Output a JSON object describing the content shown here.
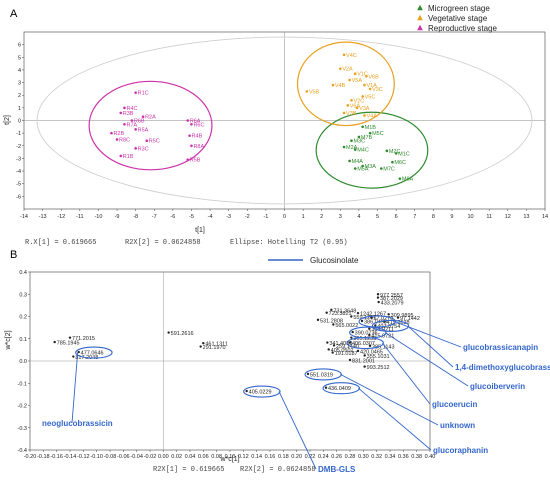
{
  "chart_data": [
    {
      "type": "scatter",
      "panel": "A",
      "xlabel": "t[1]",
      "ylabel": "t[2]",
      "xlim": [
        -14,
        14
      ],
      "ylim": [
        -7,
        7
      ],
      "x_ticks": [
        -14,
        -13,
        -12,
        -11,
        -10,
        -9,
        -8,
        -7,
        -6,
        -5,
        -4,
        -3,
        -2,
        -1,
        0,
        1,
        2,
        3,
        4,
        5,
        6,
        7,
        8,
        9,
        10,
        11,
        12,
        13,
        14
      ],
      "y_ticks": [
        -6,
        -5,
        -4,
        -3,
        -2,
        -1,
        0,
        1,
        2,
        3,
        4,
        5,
        6
      ],
      "legend_position": "top-right",
      "legend": [
        "Microgreen stage",
        "Vegetative stage",
        "Reproductive stage"
      ],
      "footer": [
        "R.X[1] = 0.619665",
        "R2X[2] = 0.0624858",
        "Ellipse: Hotelling T2 (0.95)"
      ],
      "colors": {
        "microgreen": "#2e8b2e",
        "vegetative": "#e8a020",
        "reproductive": "#cc33aa"
      },
      "series": [
        {
          "name": "Microgreen stage",
          "points": [
            {
              "x": 4.2,
              "y": -0.5,
              "label": "M1B"
            },
            {
              "x": 4.6,
              "y": -1.0,
              "label": "M5C"
            },
            {
              "x": 4.0,
              "y": -1.3,
              "label": "M7B"
            },
            {
              "x": 3.6,
              "y": -1.6,
              "label": "M3C"
            },
            {
              "x": 3.2,
              "y": -2.1,
              "label": "M2A"
            },
            {
              "x": 3.8,
              "y": -2.3,
              "label": "M4C"
            },
            {
              "x": 5.5,
              "y": -2.4,
              "label": "M2C"
            },
            {
              "x": 6.0,
              "y": -2.6,
              "label": "M1C"
            },
            {
              "x": 3.5,
              "y": -3.2,
              "label": "M4A"
            },
            {
              "x": 5.8,
              "y": -3.3,
              "label": "M6C"
            },
            {
              "x": 4.2,
              "y": -3.6,
              "label": "M3A"
            },
            {
              "x": 3.8,
              "y": -3.8,
              "label": "M5A"
            },
            {
              "x": 5.2,
              "y": -3.8,
              "label": "M7C"
            },
            {
              "x": 6.2,
              "y": -4.6,
              "label": "M6A"
            }
          ]
        },
        {
          "name": "Vegetative stage",
          "points": [
            {
              "x": 3.2,
              "y": 5.2,
              "label": "V4C"
            },
            {
              "x": 3.0,
              "y": 4.1,
              "label": "V2A"
            },
            {
              "x": 3.8,
              "y": 3.7,
              "label": "V1C"
            },
            {
              "x": 4.4,
              "y": 3.5,
              "label": "V6B"
            },
            {
              "x": 3.5,
              "y": 3.2,
              "label": "V5A"
            },
            {
              "x": 2.6,
              "y": 2.8,
              "label": "V4B"
            },
            {
              "x": 4.3,
              "y": 2.8,
              "label": "V1A"
            },
            {
              "x": 4.6,
              "y": 2.5,
              "label": "V3C"
            },
            {
              "x": 1.2,
              "y": 2.3,
              "label": "V5B"
            },
            {
              "x": 4.2,
              "y": 1.9,
              "label": "V5C"
            },
            {
              "x": 3.6,
              "y": 1.6,
              "label": "V2C"
            },
            {
              "x": 3.4,
              "y": 1.2,
              "label": "V6A"
            },
            {
              "x": 3.9,
              "y": 1.0,
              "label": "V3A"
            },
            {
              "x": 3.2,
              "y": 0.6,
              "label": "V3B"
            },
            {
              "x": 4.3,
              "y": 0.4,
              "label": "V4A"
            }
          ]
        },
        {
          "name": "Reproductive stage",
          "points": [
            {
              "x": -8.0,
              "y": 2.2,
              "label": "R1C"
            },
            {
              "x": -8.6,
              "y": 1.0,
              "label": "R4C"
            },
            {
              "x": -8.8,
              "y": 0.6,
              "label": "R3B"
            },
            {
              "x": -7.6,
              "y": 0.3,
              "label": "R2A"
            },
            {
              "x": -8.2,
              "y": 0.0,
              "label": "R6B"
            },
            {
              "x": -5.2,
              "y": 0.0,
              "label": "R6A"
            },
            {
              "x": -8.6,
              "y": -0.3,
              "label": "R7A"
            },
            {
              "x": -5.0,
              "y": -0.3,
              "label": "R6C"
            },
            {
              "x": -8.0,
              "y": -0.7,
              "label": "R5A"
            },
            {
              "x": -9.3,
              "y": -1.0,
              "label": "R2B"
            },
            {
              "x": -5.1,
              "y": -1.2,
              "label": "R4B"
            },
            {
              "x": -9.0,
              "y": -1.5,
              "label": "R8C"
            },
            {
              "x": -7.4,
              "y": -1.6,
              "label": "R5C"
            },
            {
              "x": -5.0,
              "y": -2.0,
              "label": "R8A"
            },
            {
              "x": -8.0,
              "y": -2.2,
              "label": "R3C"
            },
            {
              "x": -8.8,
              "y": -2.8,
              "label": "R1B"
            },
            {
              "x": -5.2,
              "y": -3.1,
              "label": "R5B"
            }
          ]
        }
      ]
    },
    {
      "type": "scatter",
      "panel": "B",
      "xlabel": "w*c[1]",
      "ylabel": "w*c[2]",
      "xlim": [
        -0.2,
        0.4
      ],
      "ylim": [
        -0.4,
        0.4
      ],
      "x_ticks": [
        "-0.20",
        "-0.18",
        "-0.16",
        "-0.14",
        "-0.12",
        "-0.10",
        "-0.08",
        "-0.06",
        "-0.04",
        "-0.02",
        "0.00",
        "0.02",
        "0.04",
        "0.06",
        "0.08",
        "0.10",
        "0.12",
        "0.14",
        "0.16",
        "0.18",
        "0.20",
        "0.22",
        "0.24",
        "0.26",
        "0.28",
        "0.30",
        "0.32",
        "0.34",
        "0.36",
        "0.38",
        "0.40"
      ],
      "y_ticks": [
        "0.4",
        "0.3",
        "0.2",
        "0.1",
        "0.0",
        "-0.1",
        "-0.2",
        "-0.3",
        "-0.4"
      ],
      "legend_position": "top-right",
      "legend": [
        "Glucosinolate"
      ],
      "footer": [
        "R2X[1] = 0.619665",
        "R2X[2] = 0.0624858"
      ],
      "points": [
        {
          "x": 0.322,
          "y": 0.3,
          "label": "977.2557"
        },
        {
          "x": 0.322,
          "y": 0.285,
          "label": "387.2029"
        },
        {
          "x": 0.323,
          "y": 0.265,
          "label": "433.2079"
        },
        {
          "x": 0.252,
          "y": 0.23,
          "label": "731.3648"
        },
        {
          "x": 0.245,
          "y": 0.217,
          "label": "723.3821"
        },
        {
          "x": 0.292,
          "y": 0.215,
          "label": "1242.1267"
        },
        {
          "x": 0.338,
          "y": 0.21,
          "label": "309.9895"
        },
        {
          "x": 0.282,
          "y": 0.2,
          "label": "559.1267"
        },
        {
          "x": 0.312,
          "y": 0.195,
          "label": "57.0270"
        },
        {
          "x": 0.352,
          "y": 0.195,
          "label": "97.1442"
        },
        {
          "x": 0.232,
          "y": 0.185,
          "label": "531.2808"
        },
        {
          "x": 0.298,
          "y": 0.18,
          "label": "386.0490"
        },
        {
          "x": 0.332,
          "y": 0.177,
          "label": "415.2628"
        },
        {
          "x": 0.255,
          "y": 0.164,
          "label": "565.0022"
        },
        {
          "x": 0.318,
          "y": 0.16,
          "label": "407.0754"
        },
        {
          "x": 0.008,
          "y": 0.128,
          "label": "591.2616"
        },
        {
          "x": 0.309,
          "y": 0.145,
          "label": "304.0211"
        },
        {
          "x": 0.284,
          "y": 0.13,
          "label": "390.0736"
        },
        {
          "x": 0.309,
          "y": 0.117,
          "label": "415.0721"
        },
        {
          "x": 0.282,
          "y": 0.105,
          "label": "365.1235"
        },
        {
          "x": 0.246,
          "y": 0.083,
          "label": "341.4088"
        },
        {
          "x": 0.28,
          "y": 0.083,
          "label": "406.0307"
        },
        {
          "x": 0.256,
          "y": 0.07,
          "label": "259.1440"
        },
        {
          "x": 0.31,
          "y": 0.068,
          "label": "385.1143"
        },
        {
          "x": 0.248,
          "y": 0.052,
          "label": "405.0502"
        },
        {
          "x": 0.292,
          "y": 0.045,
          "label": "420.0465"
        },
        {
          "x": 0.254,
          "y": 0.038,
          "label": "191.0187"
        },
        {
          "x": 0.302,
          "y": 0.025,
          "label": "355.1031"
        },
        {
          "x": 0.28,
          "y": 0.005,
          "label": "831.2001"
        },
        {
          "x": 0.302,
          "y": -0.025,
          "label": "993.2512"
        },
        {
          "x": 0.06,
          "y": 0.08,
          "label": "461.1311"
        },
        {
          "x": 0.056,
          "y": 0.065,
          "label": "291.1970"
        },
        {
          "x": -0.14,
          "y": 0.105,
          "label": "771.2015"
        },
        {
          "x": -0.163,
          "y": 0.085,
          "label": "785.1945"
        },
        {
          "x": -0.127,
          "y": 0.04,
          "label": "477.0646"
        },
        {
          "x": -0.135,
          "y": 0.02,
          "label": "817.2048"
        },
        {
          "x": 0.217,
          "y": -0.058,
          "label": "551.0319"
        },
        {
          "x": 0.244,
          "y": -0.12,
          "label": "436.0409"
        },
        {
          "x": 0.125,
          "y": -0.135,
          "label": "405.0229"
        }
      ],
      "annotations": [
        {
          "label": "glucobrassicanapin",
          "target": "386.0490"
        },
        {
          "label": "1,4-dimethoxyglucobrassicin",
          "target": "407.0754"
        },
        {
          "label": "glucoiberverin",
          "target": "390.0736"
        },
        {
          "label": "glucoerucin",
          "target": "406.0307"
        },
        {
          "label": "unknown",
          "target": "551.0319"
        },
        {
          "label": "glucoraphanin",
          "target": "436.0409"
        },
        {
          "label": "neoglucobrassicin",
          "target": "477.0646"
        },
        {
          "label": "DMB-GLS",
          "target": "405.0229"
        }
      ]
    }
  ]
}
